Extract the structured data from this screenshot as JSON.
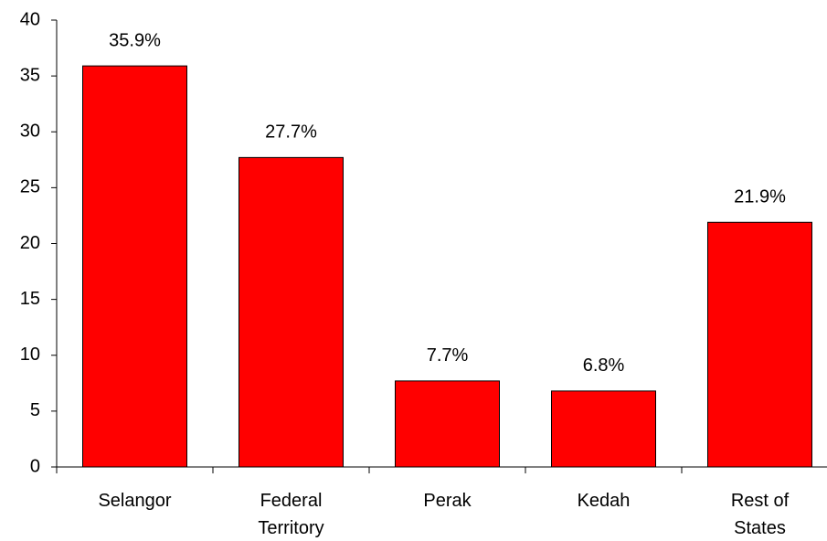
{
  "chart_data": {
    "type": "bar",
    "categories": [
      "Selangor",
      "Federal Territory",
      "Perak",
      "Kedah",
      "Rest of States"
    ],
    "values": [
      35.9,
      27.7,
      7.7,
      6.8,
      21.9
    ],
    "value_labels": [
      "35.9%",
      "27.7%",
      "7.7%",
      "6.8%",
      "21.9%"
    ],
    "color": "#ff0000",
    "ylim": [
      0,
      40
    ],
    "yticks": [
      0,
      5,
      10,
      15,
      20,
      25,
      30,
      35,
      40
    ],
    "grid": false
  }
}
